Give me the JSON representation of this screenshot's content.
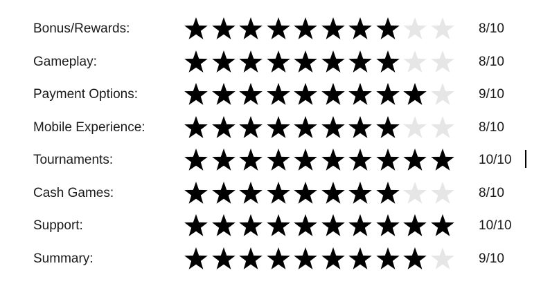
{
  "ratings": [
    {
      "label": "Bonus/Rewards:",
      "stars_filled": 8,
      "stars_total": 10,
      "score": "8/10"
    },
    {
      "label": "Gameplay:",
      "stars_filled": 8,
      "stars_total": 10,
      "score": "8/10"
    },
    {
      "label": "Payment Options:",
      "stars_filled": 9,
      "stars_total": 10,
      "score": "9/10"
    },
    {
      "label": "Mobile Experience:",
      "stars_filled": 8,
      "stars_total": 10,
      "score": "8/10"
    },
    {
      "label": "Tournaments:",
      "stars_filled": 10,
      "stars_total": 10,
      "score": "10/10"
    },
    {
      "label": "Cash Games:",
      "stars_filled": 8,
      "stars_total": 10,
      "score": "8/10"
    },
    {
      "label": "Support:",
      "stars_filled": 10,
      "stars_total": 10,
      "score": "10/10"
    },
    {
      "label": "Summary:",
      "stars_filled": 9,
      "stars_total": 10,
      "score": "9/10"
    }
  ],
  "colors": {
    "star_filled": "#000000",
    "star_empty": "#e6e6e6",
    "text": "#1a1a1a"
  },
  "icons": {
    "star": "star-icon"
  }
}
